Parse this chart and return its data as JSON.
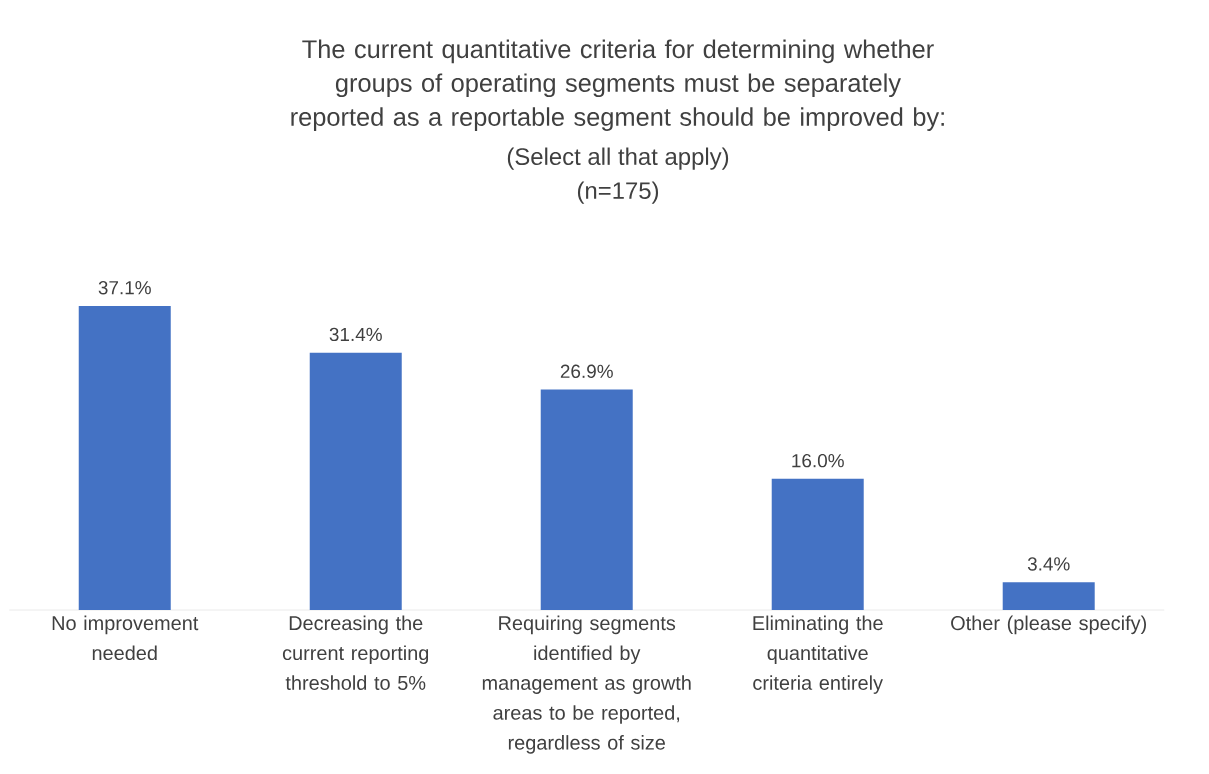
{
  "chart_data": {
    "type": "bar",
    "title": "The current quantitative criteria for determining whether groups of operating segments must be separately reported as a reportable segment should be improved by:",
    "subtitle": "(Select all that apply)",
    "annotations": [
      "(n=175)"
    ],
    "categories": [
      "No improvement needed",
      "Decreasing the current reporting threshold to 5%",
      "Requiring segments identified by management as growth areas to be reported, regardless of size",
      "Eliminating the quantitative criteria entirely",
      "Other (please specify)"
    ],
    "values": [
      37.1,
      31.4,
      26.9,
      16.0,
      3.4
    ],
    "value_labels": [
      "37.1%",
      "31.4%",
      "26.9%",
      "16.0%",
      "3.4%"
    ],
    "color": "#4472c4"
  }
}
